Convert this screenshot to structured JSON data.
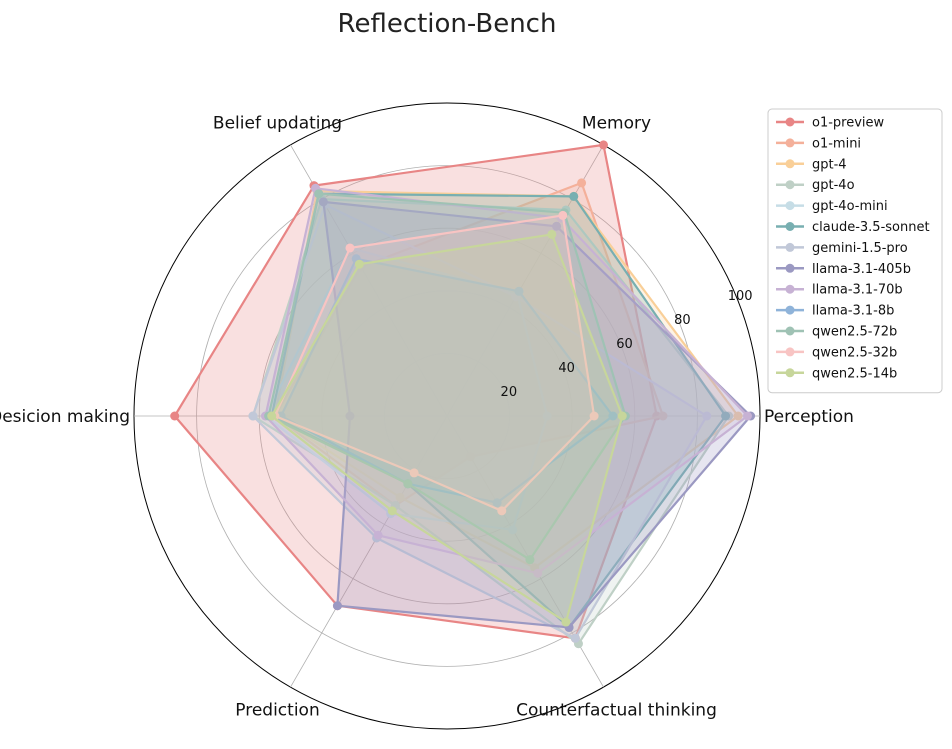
{
  "chart_data": {
    "type": "radar",
    "title": "Reflection-Bench",
    "axes": [
      "Perception",
      "Memory",
      "Belief updating",
      "Desicion making",
      "Prediction",
      "Counterfactual thinking"
    ],
    "rlim": [
      0,
      100
    ],
    "rticks": [
      20,
      40,
      60,
      80,
      100
    ],
    "grid": true,
    "legend_position": "right",
    "series": [
      {
        "name": "o1-preview",
        "color": "#e88585",
        "values": [
          67,
          100,
          85,
          87,
          70,
          82
        ]
      },
      {
        "name": "o1-mini",
        "color": "#f4b09a",
        "values": [
          69,
          86,
          55,
          55,
          33,
          15
        ]
      },
      {
        "name": "gpt-4",
        "color": "#f9cf98",
        "values": [
          93,
          81,
          83,
          55,
          30,
          56
        ]
      },
      {
        "name": "gpt-4o",
        "color": "#bfd0c6",
        "values": [
          90,
          76,
          80,
          62,
          33,
          84
        ]
      },
      {
        "name": "gpt-4o-mini",
        "color": "#c6dde6",
        "values": [
          32,
          45,
          62,
          58,
          36,
          42
        ]
      },
      {
        "name": "claude-3.5-sonnet",
        "color": "#78afb1",
        "values": [
          89,
          81,
          82,
          56,
          25,
          78
        ]
      },
      {
        "name": "gemini-1.5-pro",
        "color": "#c1c8d8",
        "values": [
          83,
          44,
          78,
          62,
          45,
          82
        ]
      },
      {
        "name": "llama-3.1-405b",
        "color": "#9b99c2",
        "values": [
          97,
          70,
          79,
          31,
          70,
          78
        ]
      },
      {
        "name": "llama-3.1-70b",
        "color": "#c7b2d4",
        "values": [
          96,
          73,
          84,
          58,
          44,
          58
        ]
      },
      {
        "name": "llama-3.1-8b",
        "color": "#8fb3d9",
        "values": [
          53,
          46,
          58,
          53,
          25,
          32
        ]
      },
      {
        "name": "qwen2.5-72b",
        "color": "#9fc2b4",
        "values": [
          57,
          75,
          82,
          57,
          25,
          53
        ]
      },
      {
        "name": "qwen2.5-32b",
        "color": "#f8c4c3",
        "values": [
          47,
          74,
          62,
          55,
          21,
          35
        ]
      },
      {
        "name": "qwen2.5-14b",
        "color": "#c7d69b",
        "values": [
          56,
          67,
          56,
          56,
          35,
          76
        ]
      }
    ]
  }
}
